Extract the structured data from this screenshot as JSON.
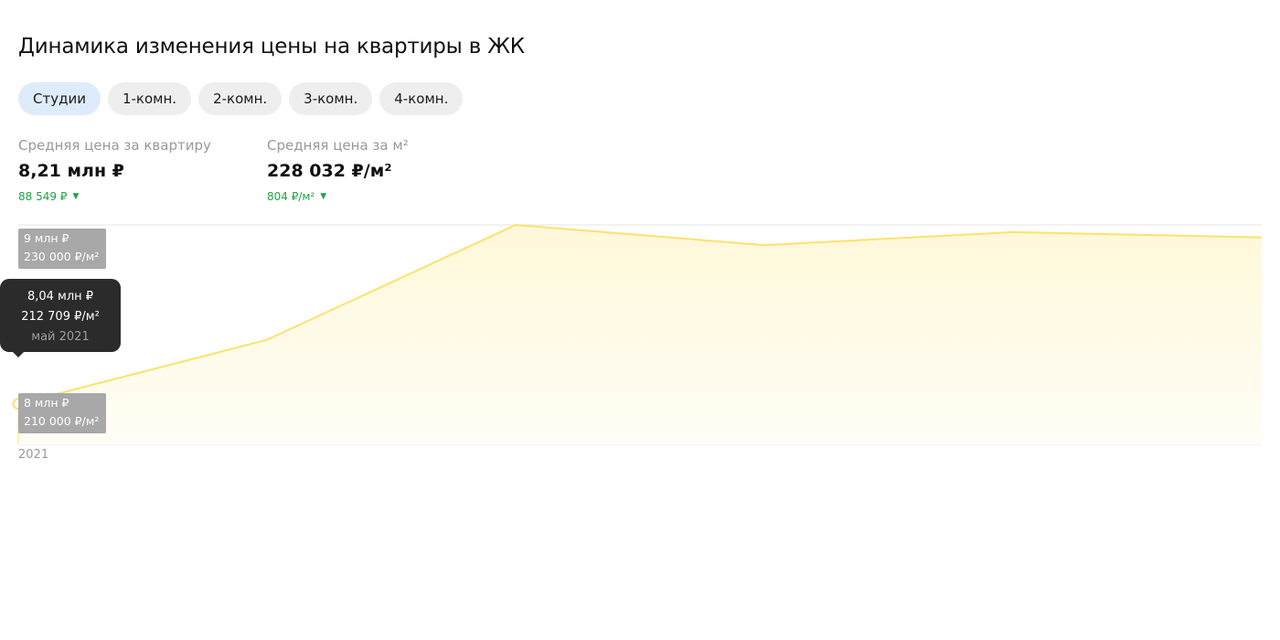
{
  "title": "Динамика изменения цены на квартиры в ЖК",
  "tabs": [
    {
      "label": "Студии",
      "active": true
    },
    {
      "label": "1-комн.",
      "active": false
    },
    {
      "label": "2-комн.",
      "active": false
    },
    {
      "label": "3-комн.",
      "active": false
    },
    {
      "label": "4-комн.",
      "active": false
    }
  ],
  "stats": {
    "avg_price": {
      "label": "Средняя цена за квартиру",
      "value": "8,21 млн ₽",
      "change": "88 549 ₽",
      "direction": "down"
    },
    "avg_price_m2": {
      "label": "Средняя цена за м²",
      "value": "228 032 ₽/м²",
      "change": "804 ₽/м²",
      "direction": "down"
    }
  },
  "colors": {
    "line": "#fde26c",
    "fill": "#fffbe9",
    "positive_change": "#1fa344",
    "active_tab": "#deebfa"
  },
  "tooltip": {
    "price": "8,04 млн ₽",
    "price_m2": "212 709 ₽/м²",
    "date": "май 2021"
  },
  "chart_data": {
    "type": "area",
    "title": "",
    "xlabel": "",
    "ylabel": "",
    "x_tick_labels": [
      "2021"
    ],
    "y_tick_labels": [
      {
        "price": "9 млн ₽",
        "price_m2": "230 000 ₽/м²",
        "value": 230000
      },
      {
        "price": "8 млн ₽",
        "price_m2": "210 000 ₽/м²",
        "value": 210000
      }
    ],
    "ylim": [
      208800,
      230000
    ],
    "series": [
      {
        "x": [
          0,
          1,
          2,
          3,
          4,
          5
        ],
        "values": [
          212709,
          218900,
          230000,
          228050,
          229300,
          228800
        ]
      }
    ],
    "highlighted_index": 0,
    "grid": true
  }
}
